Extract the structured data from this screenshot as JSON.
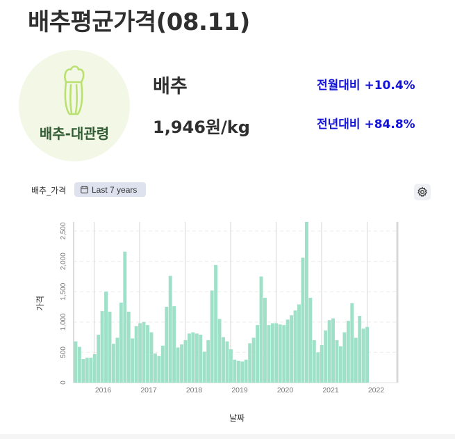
{
  "header": {
    "title": "배추평균가격(08.11)"
  },
  "badge": {
    "label": "배추-대관령",
    "icon": "cabbage-icon"
  },
  "product": {
    "name": "배추",
    "price": "1,946원/kg"
  },
  "changes": {
    "monthly": "전월대비 +10.4%",
    "yearly": "전년대비 +84.8%"
  },
  "chart_header": {
    "title": "배추_가격",
    "range_label": "Last 7 years",
    "range_icon": "calendar-icon",
    "settings_icon": "gear-icon"
  },
  "colors": {
    "bar": "#9fe0c8",
    "delta": "#1212d8",
    "badge_bg": "#f3f8e6",
    "badge_text": "#2f5a32"
  },
  "chart_data": {
    "type": "bar",
    "xlabel": "날짜",
    "ylabel": "가격",
    "ylim": [
      0,
      2650
    ],
    "y_ticks": [
      0,
      500,
      1000,
      1500,
      2000,
      2500
    ],
    "y_tick_labels": [
      "0",
      "500",
      "1,000",
      "1,500",
      "2,000",
      "2,500"
    ],
    "x_tick_labels": [
      "2016",
      "2017",
      "2018",
      "2019",
      "2020",
      "2021",
      "2022"
    ],
    "grid": true,
    "bar_start": "2015-06",
    "bar_frequency": "monthly",
    "values": [
      680,
      590,
      390,
      410,
      410,
      470,
      790,
      1180,
      1500,
      1170,
      640,
      740,
      1320,
      2160,
      1170,
      730,
      930,
      980,
      1000,
      950,
      830,
      480,
      440,
      610,
      1250,
      1760,
      1260,
      580,
      630,
      700,
      810,
      830,
      810,
      790,
      510,
      700,
      1520,
      1940,
      1050,
      750,
      680,
      550,
      380,
      360,
      350,
      380,
      650,
      740,
      950,
      1750,
      1400,
      950,
      980,
      980,
      960,
      950,
      1040,
      1110,
      1190,
      1290,
      2060,
      2650,
      1400,
      700,
      500,
      620,
      860,
      1030,
      1060,
      700,
      600,
      830,
      1020,
      1310,
      740,
      1100,
      890,
      920
    ]
  }
}
